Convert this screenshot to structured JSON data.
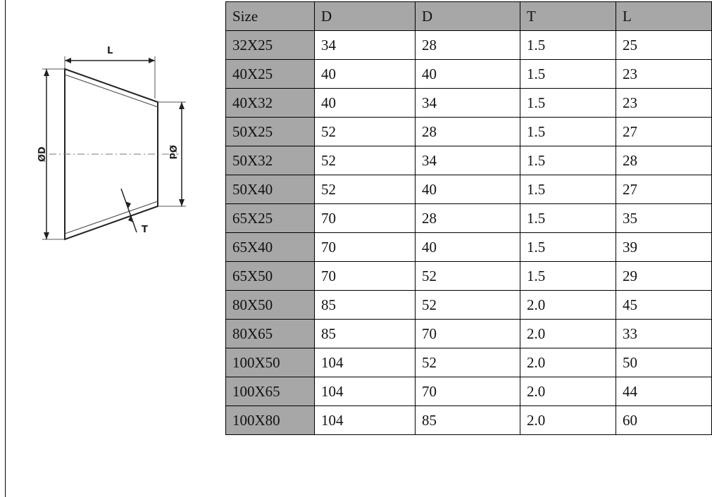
{
  "drawing": {
    "label_length": "L",
    "label_outer_diameter": "ØD",
    "label_inner_diameter": "Ød",
    "label_thickness": "T"
  },
  "table": {
    "headers": [
      "Size",
      "D",
      "D",
      "T",
      "L"
    ],
    "rows": [
      [
        "32X25",
        "34",
        "28",
        "1.5",
        "25"
      ],
      [
        "40X25",
        "40",
        "40",
        "1.5",
        "23"
      ],
      [
        "40X32",
        "40",
        "34",
        "1.5",
        "23"
      ],
      [
        "50X25",
        "52",
        "28",
        "1.5",
        "27"
      ],
      [
        "50X32",
        "52",
        "34",
        "1.5",
        "28"
      ],
      [
        "50X40",
        "52",
        "40",
        "1.5",
        "27"
      ],
      [
        "65X25",
        "70",
        "28",
        "1.5",
        "35"
      ],
      [
        "65X40",
        "70",
        "40",
        "1.5",
        "39"
      ],
      [
        "65X50",
        "70",
        "52",
        "1.5",
        "29"
      ],
      [
        "80X50",
        "85",
        "52",
        "2.0",
        "45"
      ],
      [
        "80X65",
        "85",
        "70",
        "2.0",
        "33"
      ],
      [
        "100X50",
        "104",
        "52",
        "2.0",
        "50"
      ],
      [
        "100X65",
        "104",
        "70",
        "2.0",
        "44"
      ],
      [
        "100X80",
        "104",
        "85",
        "2.0",
        "60"
      ]
    ]
  }
}
